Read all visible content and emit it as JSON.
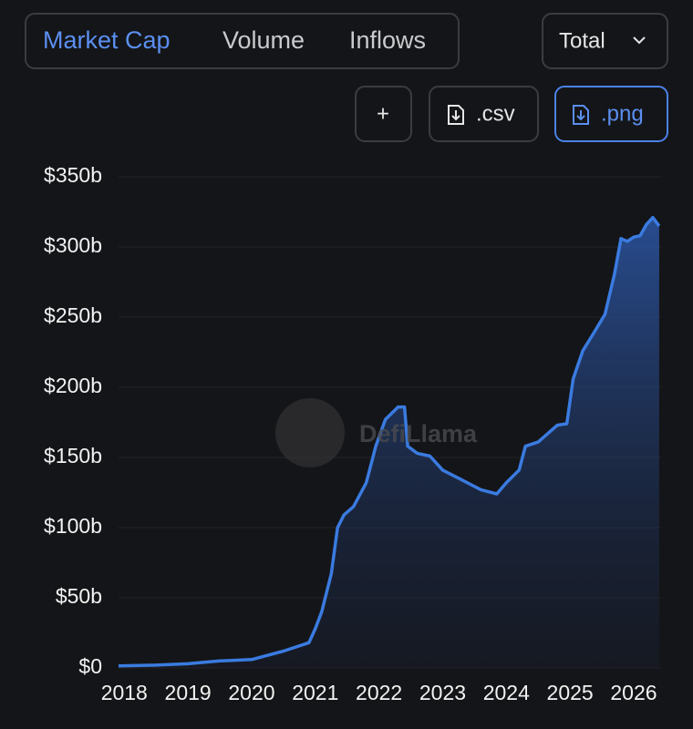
{
  "ui": {
    "tabs": [
      "Market Cap",
      "Volume",
      "Inflows"
    ],
    "dropdown": "Total",
    "buttons": [
      "+",
      ".csv",
      ".png"
    ],
    "watermark": "DefiLlama"
  },
  "chart_data": {
    "type": "area",
    "x": [
      2017.91,
      2018.5,
      2019.0,
      2019.5,
      2020.0,
      2020.5,
      2020.9,
      2021.0,
      2021.1,
      2021.25,
      2021.35,
      2021.45,
      2021.6,
      2021.8,
      2021.95,
      2022.1,
      2022.3,
      2022.4,
      2022.45,
      2022.6,
      2022.8,
      2023.0,
      2023.3,
      2023.6,
      2023.85,
      2024.0,
      2024.2,
      2024.3,
      2024.5,
      2024.8,
      2024.95,
      2025.05,
      2025.2,
      2025.35,
      2025.55,
      2025.7,
      2025.8,
      2025.9,
      2026.0,
      2026.1,
      2026.2,
      2026.3,
      2026.4
    ],
    "values": [
      1.5,
      2,
      3,
      5,
      6,
      12,
      18,
      28,
      40,
      67,
      100,
      109,
      115,
      132,
      158,
      177,
      186,
      186,
      158,
      153,
      151,
      141,
      134,
      127,
      124,
      132,
      141,
      158,
      161,
      173,
      174,
      206,
      226,
      237,
      252,
      281,
      306,
      304,
      307,
      308,
      316,
      321,
      315
    ],
    "color": "#3a7be0",
    "xlim": [
      2017.91,
      2026.43
    ],
    "xticks": [
      2018,
      2019,
      2020,
      2021,
      2022,
      2023,
      2024,
      2025,
      2026
    ],
    "ylim": [
      0,
      350
    ],
    "yticks": [
      {
        "value": 0,
        "label": "$0"
      },
      {
        "value": 50,
        "label": "$50b"
      },
      {
        "value": 100,
        "label": "$100b"
      },
      {
        "value": 150,
        "label": "$150b"
      },
      {
        "value": 200,
        "label": "$200b"
      },
      {
        "value": 250,
        "label": "$250b"
      },
      {
        "value": 300,
        "label": "$300b"
      },
      {
        "value": 350,
        "label": "$350b"
      }
    ],
    "grid": true
  }
}
